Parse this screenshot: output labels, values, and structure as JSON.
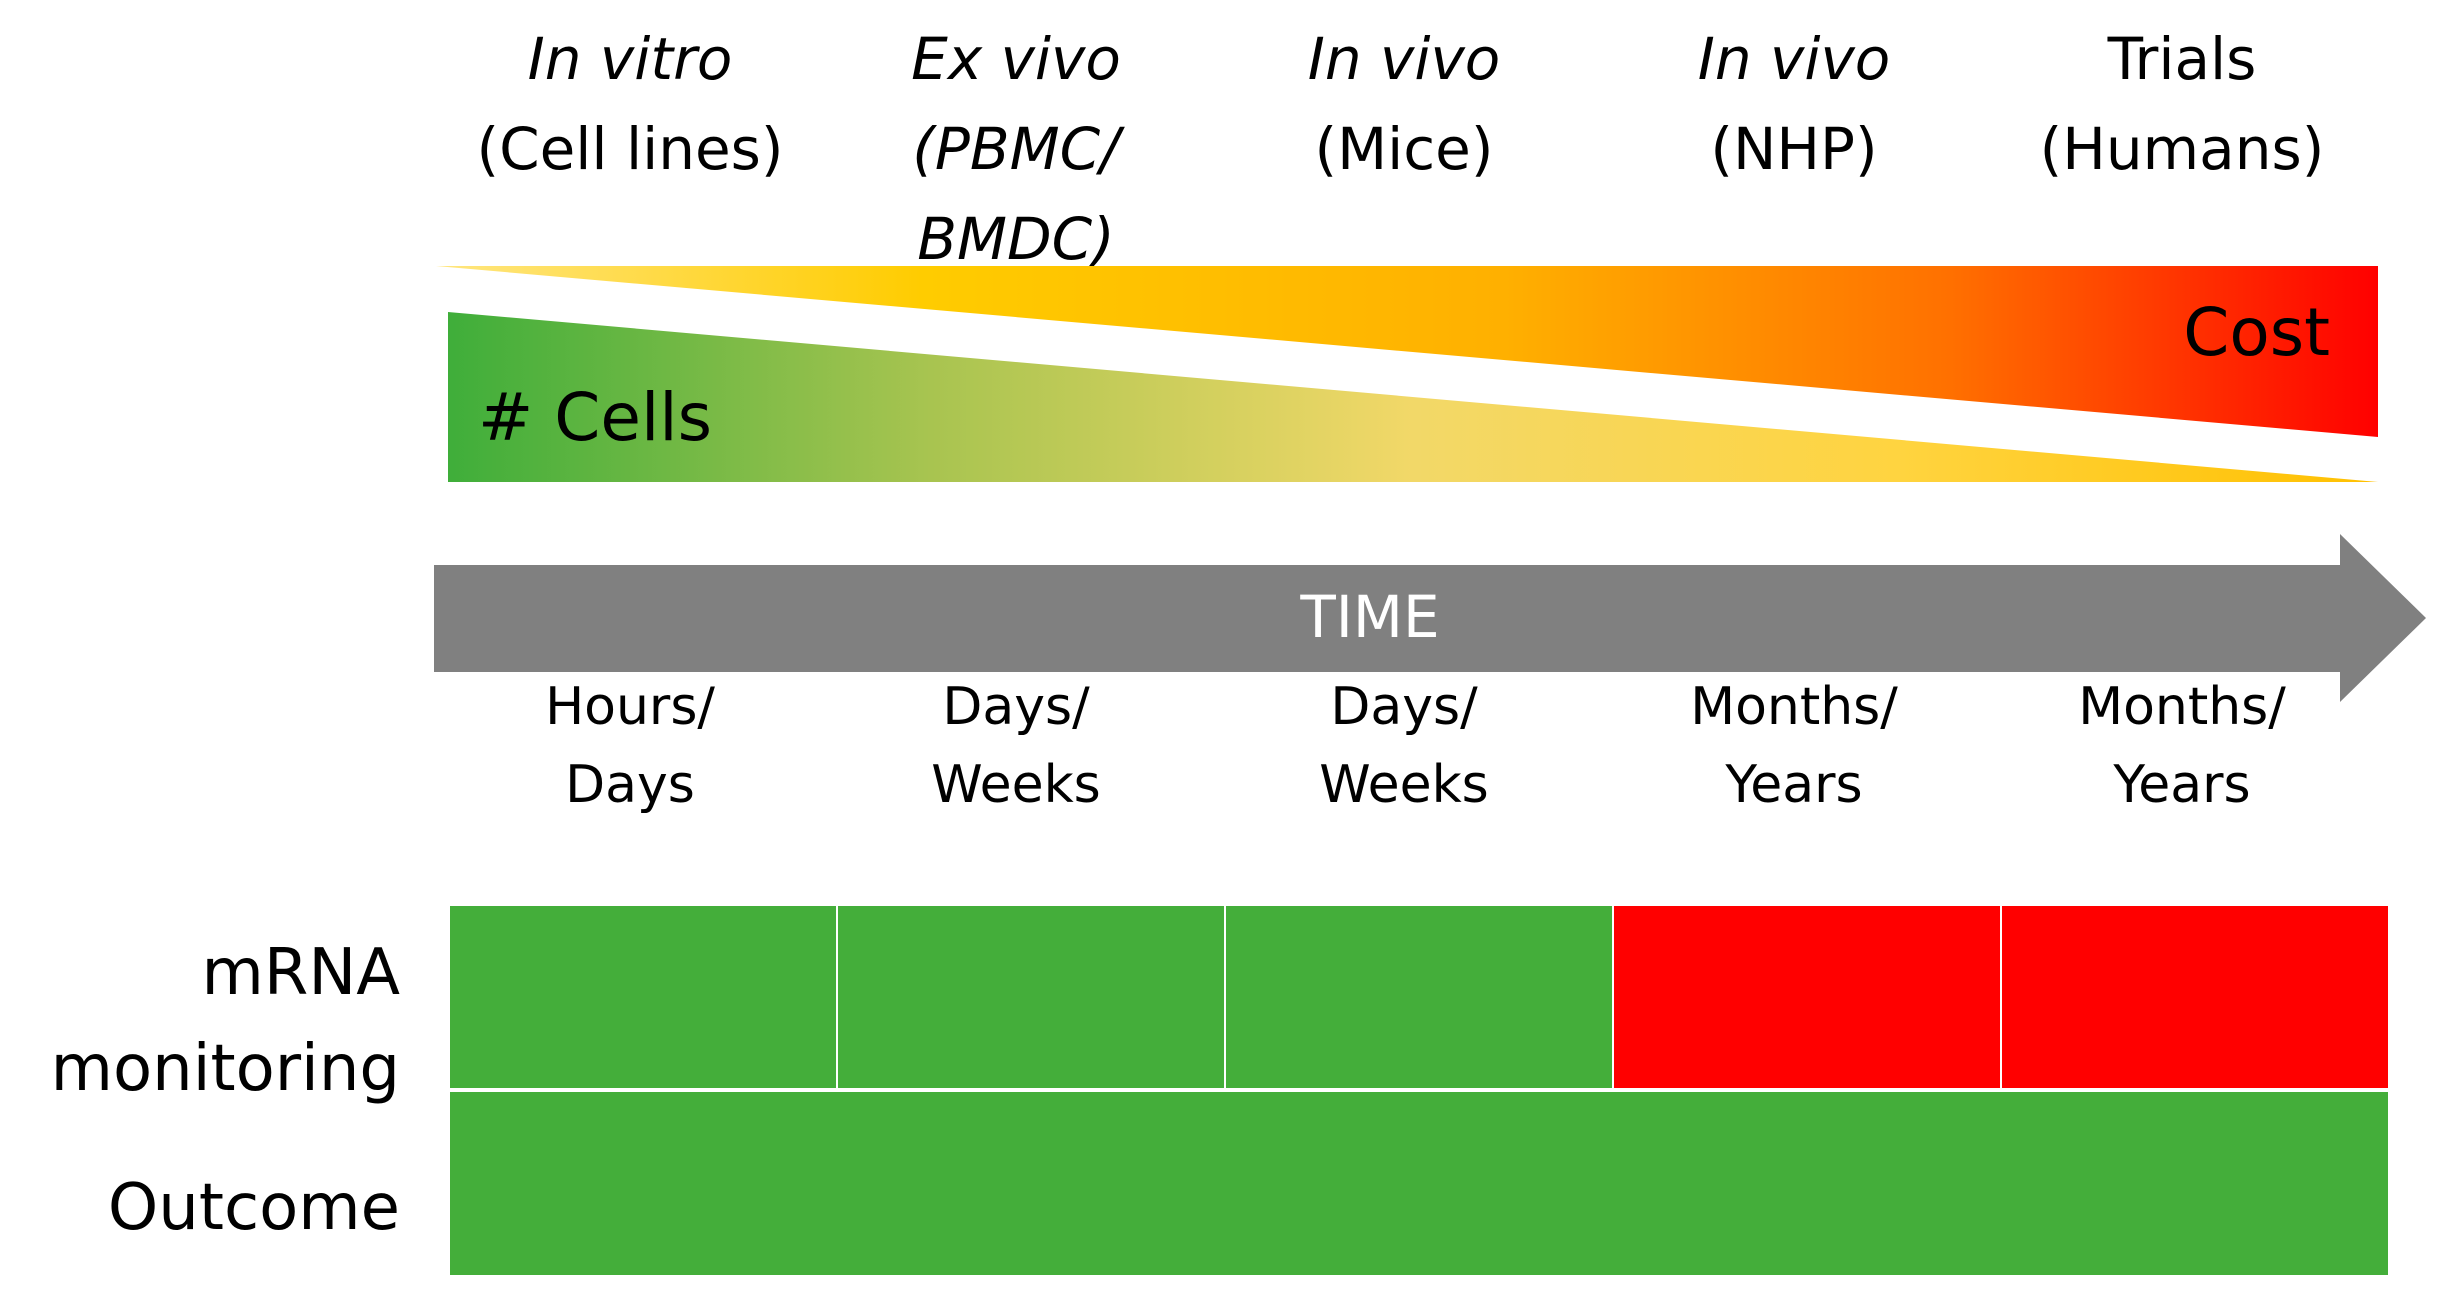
{
  "stages": [
    {
      "line1": "In vitro",
      "line1_italic": true,
      "line2": "(Cell lines)",
      "line2_italic": false,
      "line3": "",
      "duration_line1": "Hours/",
      "duration_line2": "Days"
    },
    {
      "line1": "Ex vivo",
      "line1_italic": true,
      "line2": "(PBMC/",
      "line2_italic": true,
      "line3": "BMDC)",
      "duration_line1": "Days/",
      "duration_line2": "Weeks"
    },
    {
      "line1": "In vivo",
      "line1_italic": true,
      "line2": "(Mice)",
      "line2_italic": false,
      "line3": "",
      "duration_line1": "Days/",
      "duration_line2": "Weeks"
    },
    {
      "line1": "In vivo",
      "line1_italic": true,
      "line2": "(NHP)",
      "line2_italic": false,
      "line3": "",
      "duration_line1": "Months/",
      "duration_line2": "Years"
    },
    {
      "line1": "Trials",
      "line1_italic": false,
      "line2": "(Humans)",
      "line2_italic": false,
      "line3": "",
      "duration_line1": "Months/",
      "duration_line2": "Years"
    }
  ],
  "cost_label": "Cost",
  "cells_label": "# Cells",
  "time_label": "TIME",
  "rows": {
    "mrna_label_line1": "mRNA",
    "mrna_label_line2": "monitoring",
    "outcome_label": "Outcome"
  },
  "mrna_status": [
    "green",
    "green",
    "green",
    "red",
    "red"
  ],
  "colors": {
    "green": "#44ae3a",
    "red": "#ff0000",
    "yellow": "#ffc000",
    "orange": "#ff9900",
    "arrow_gray": "#808080"
  }
}
